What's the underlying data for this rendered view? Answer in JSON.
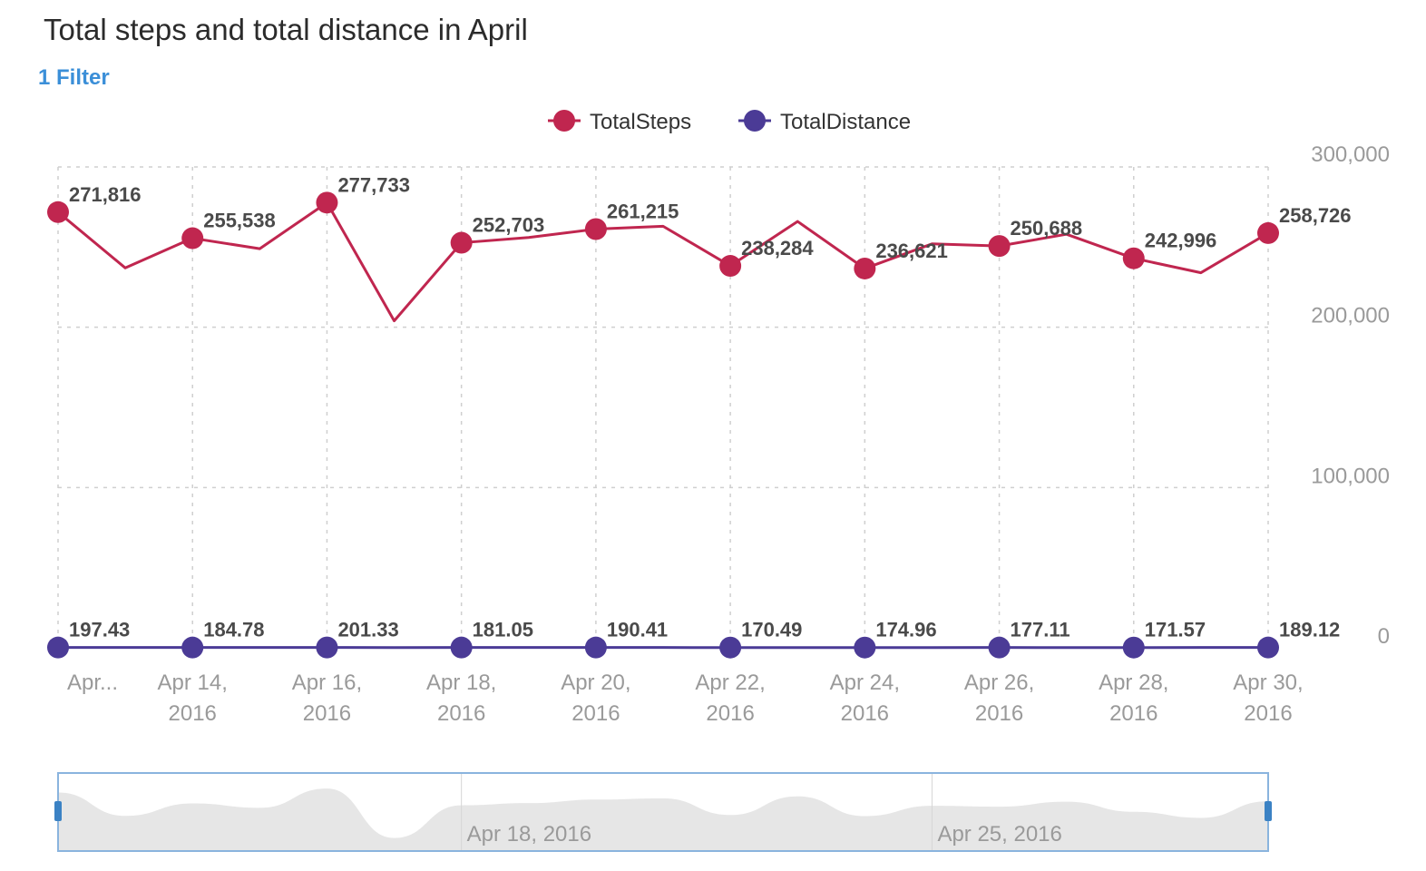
{
  "title": "Total steps and total distance in April",
  "filter_label": "1 Filter",
  "colors": {
    "steps": "#c0264f",
    "distance": "#4b3b96",
    "grid": "#cfcfcf",
    "navigator_fill": "#e6e6e6",
    "navigator_border": "#8ab4de",
    "navigator_handle": "#3b82c4"
  },
  "chart_data": {
    "type": "line",
    "legend_position": "top-center",
    "grid": true,
    "x": [
      "Apr 12, 2016",
      "Apr 13, 2016",
      "Apr 14, 2016",
      "Apr 15, 2016",
      "Apr 16, 2016",
      "Apr 17, 2016",
      "Apr 18, 2016",
      "Apr 19, 2016",
      "Apr 20, 2016",
      "Apr 21, 2016",
      "Apr 22, 2016",
      "Apr 23, 2016",
      "Apr 24, 2016",
      "Apr 25, 2016",
      "Apr 26, 2016",
      "Apr 27, 2016",
      "Apr 28, 2016",
      "Apr 29, 2016",
      "Apr 30, 2016"
    ],
    "x_tick_labels": [
      {
        "index": 0,
        "lines": [
          "Apr..."
        ]
      },
      {
        "index": 2,
        "lines": [
          "Apr 14,",
          "2016"
        ]
      },
      {
        "index": 4,
        "lines": [
          "Apr 16,",
          "2016"
        ]
      },
      {
        "index": 6,
        "lines": [
          "Apr 18,",
          "2016"
        ]
      },
      {
        "index": 8,
        "lines": [
          "Apr 20,",
          "2016"
        ]
      },
      {
        "index": 10,
        "lines": [
          "Apr 22,",
          "2016"
        ]
      },
      {
        "index": 12,
        "lines": [
          "Apr 24,",
          "2016"
        ]
      },
      {
        "index": 14,
        "lines": [
          "Apr 26,",
          "2016"
        ]
      },
      {
        "index": 16,
        "lines": [
          "Apr 28,",
          "2016"
        ]
      },
      {
        "index": 18,
        "lines": [
          "Apr 30,",
          "2016"
        ]
      }
    ],
    "y_ticks": [
      "0",
      "100,000",
      "200,000",
      "300,000"
    ],
    "y_tick_values": [
      0,
      100000,
      200000,
      300000
    ],
    "ylim": [
      0,
      300000
    ],
    "series": [
      {
        "name": "TotalSteps",
        "values": [
          271816,
          237000,
          255538,
          249000,
          277733,
          204000,
          252703,
          256000,
          261215,
          263000,
          238284,
          266000,
          236621,
          252000,
          250688,
          258000,
          242996,
          234000,
          258726
        ],
        "labeled_indices": [
          0,
          2,
          4,
          6,
          8,
          10,
          12,
          14,
          16,
          18
        ],
        "data_labels": [
          "271,816",
          "255,538",
          "277,733",
          "252,703",
          "261,215",
          "238,284",
          "236,621",
          "250,688",
          "242,996",
          "258,726"
        ]
      },
      {
        "name": "TotalDistance",
        "values": [
          197.43,
          190,
          184.78,
          193,
          201.33,
          175,
          181.05,
          186,
          190.41,
          180,
          170.49,
          173,
          174.96,
          176,
          177.11,
          174,
          171.57,
          180,
          189.12
        ],
        "labeled_indices": [
          0,
          2,
          4,
          6,
          8,
          10,
          12,
          14,
          16,
          18
        ],
        "data_labels": [
          "197.43",
          "184.78",
          "201.33",
          "181.05",
          "190.41",
          "170.49",
          "174.96",
          "177.11",
          "171.57",
          "189.12"
        ]
      }
    ],
    "navigator": {
      "labels": [
        {
          "text": "Apr 18, 2016",
          "index": 6
        },
        {
          "text": "Apr 25, 2016",
          "index": 13
        }
      ]
    }
  }
}
